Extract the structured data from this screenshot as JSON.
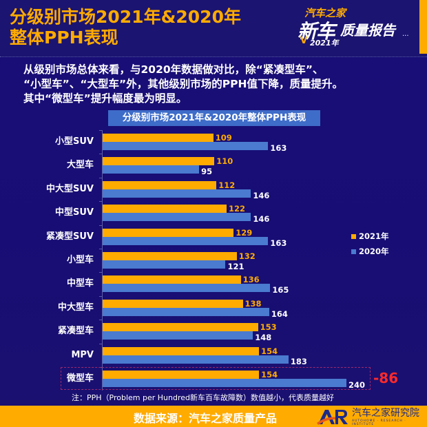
{
  "header": {
    "title_line1": "分级别市场2021年&2020年",
    "title_line2": "整体PPH表现",
    "logo": {
      "line1": "汽车之家",
      "line2a": "新车",
      "line2b": "质量报告",
      "line3": "2021年",
      "dots": "...",
      "check": "V"
    }
  },
  "description": {
    "line1": "从级别市场总体来看，与2020年数据做对比，除“紧凑型车”、",
    "line2": "“小型车”、“大型车”外，其他级别市场的PPH值下降，质量提升。",
    "line3": "其中“微型车”提升幅度最为明显。"
  },
  "colors": {
    "y2021": "#ffab00",
    "y2020": "#4a7bd0",
    "background": "#1a0f78",
    "highlight_diff": "#ff2a2a"
  },
  "chart_data": {
    "type": "bar",
    "orientation": "horizontal",
    "title": "分级别市场2021年&2020年整体PPH表现",
    "categories": [
      "小型SUV",
      "大型车",
      "中大型SUV",
      "中型SUV",
      "紧凑型SUV",
      "小型车",
      "中型车",
      "中大型车",
      "紧凑型车",
      "MPV",
      "微型车"
    ],
    "series": [
      {
        "name": "2021年",
        "color": "#ffab00",
        "values": [
          109,
          110,
          112,
          122,
          129,
          132,
          136,
          138,
          153,
          154,
          154
        ]
      },
      {
        "name": "2020年",
        "color": "#4a7bd0",
        "values": [
          163,
          95,
          146,
          146,
          163,
          121,
          165,
          164,
          148,
          183,
          240
        ]
      }
    ],
    "xlabel": "",
    "ylabel": "",
    "legend_position": "right",
    "grid": false,
    "annotations": [
      {
        "category": "微型车",
        "text": "-86",
        "color": "#ff2a2a"
      }
    ],
    "xlim": [
      0,
      260
    ]
  },
  "legend": {
    "items": [
      {
        "label": "2021年",
        "color": "#ffab00"
      },
      {
        "label": "2020年",
        "color": "#4a7bd0"
      }
    ]
  },
  "annotation": {
    "diff": "-86"
  },
  "note": "注：PPH（Problem per Hundred新车百车故障数）数值越小，代表质量越好",
  "footer": {
    "source": "数据来源：汽车之家质量产品",
    "org_name": "汽车之家研究院",
    "org_en": "AUTOHOME · RESEARCH · INSTITUTE",
    "org_logo": "AR"
  }
}
